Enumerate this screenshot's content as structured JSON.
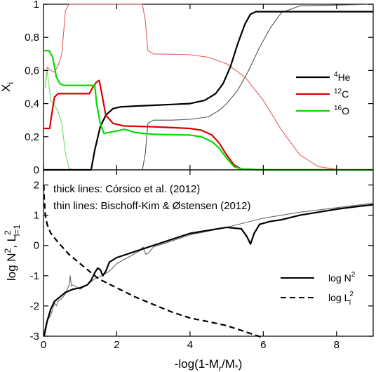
{
  "chart_data": [
    {
      "type": "line",
      "panel": "top",
      "ylabel_main": "X",
      "ylabel_sub": "i",
      "xlim": [
        0,
        9
      ],
      "ylim": [
        0,
        1
      ],
      "yticks": [
        "0",
        "0,2",
        "0,4",
        "0,6",
        "0,8",
        "1"
      ],
      "ytick_values": [
        0,
        0.2,
        0.4,
        0.6,
        0.8,
        1
      ],
      "grid": false,
      "legend_position": "right",
      "series": [
        {
          "name": "He",
          "name_sup": "4",
          "key": "he_thick",
          "style": "thick",
          "color": "#000000",
          "x": [
            0,
            1.3,
            1.4,
            1.55,
            1.7,
            1.9,
            2.1,
            2.5,
            3.0,
            3.5,
            4.0,
            4.4,
            4.7,
            4.9,
            5.1,
            5.3,
            5.5,
            5.65,
            5.8,
            6.5,
            9.0
          ],
          "y": [
            0,
            0,
            0.12,
            0.26,
            0.33,
            0.37,
            0.38,
            0.385,
            0.39,
            0.395,
            0.4,
            0.42,
            0.46,
            0.52,
            0.62,
            0.76,
            0.88,
            0.94,
            0.955,
            0.955,
            0.955
          ]
        },
        {
          "name": "C",
          "name_sup": "12",
          "key": "c_thick",
          "style": "thick",
          "color": "#dd0000",
          "x": [
            0,
            0.17,
            0.2,
            0.3,
            0.4,
            0.5,
            1.25,
            1.35,
            1.45,
            1.52,
            1.6,
            1.7,
            1.9,
            2.2,
            3.0,
            4.0,
            4.3,
            4.6,
            4.8,
            5.0,
            5.2,
            5.4,
            6.0,
            9.0
          ],
          "y": [
            0.25,
            0.25,
            0.3,
            0.44,
            0.46,
            0.46,
            0.46,
            0.5,
            0.53,
            0.54,
            0.45,
            0.33,
            0.28,
            0.265,
            0.26,
            0.25,
            0.24,
            0.21,
            0.16,
            0.09,
            0.03,
            0.005,
            0,
            0
          ]
        },
        {
          "name": "O",
          "name_sup": "16",
          "key": "o_thick",
          "style": "thick",
          "color": "#00dd00",
          "x": [
            0,
            0.15,
            0.25,
            0.35,
            0.45,
            0.55,
            1.4,
            1.45,
            1.55,
            1.65,
            1.9,
            2.1,
            2.2,
            2.3,
            2.5,
            3.0,
            4.0,
            4.3,
            4.6,
            4.8,
            5.0,
            5.2,
            5.4,
            6.0,
            9.0
          ],
          "y": [
            0.72,
            0.72,
            0.68,
            0.56,
            0.52,
            0.51,
            0.51,
            0.4,
            0.28,
            0.22,
            0.23,
            0.24,
            0.245,
            0.24,
            0.225,
            0.215,
            0.21,
            0.2,
            0.17,
            0.13,
            0.07,
            0.02,
            0.005,
            0,
            0
          ]
        },
        {
          "name": "",
          "key": "he_thin",
          "style": "thin",
          "color": "#555555",
          "x": [
            0,
            2.7,
            2.78,
            2.85,
            3.0,
            3.5,
            4.0,
            4.5,
            4.8,
            5.0,
            5.3,
            5.6,
            5.9,
            6.2,
            6.5,
            7.0,
            9.0
          ],
          "y": [
            0,
            0,
            0.1,
            0.28,
            0.3,
            0.3,
            0.305,
            0.32,
            0.36,
            0.4,
            0.48,
            0.6,
            0.74,
            0.86,
            0.95,
            0.99,
            1.0
          ]
        },
        {
          "name": "",
          "key": "c_thin",
          "style": "thin",
          "color": "#e06060",
          "x": [
            0,
            0.05,
            0.1,
            0.2,
            0.3,
            0.4,
            0.5,
            0.6,
            0.7,
            2.7,
            2.78,
            2.85,
            3.0,
            4.0,
            4.5,
            5.0,
            5.5,
            6.0,
            6.5,
            7.0,
            7.5,
            8.0,
            9.0
          ],
          "y": [
            0.5,
            0.5,
            0.62,
            0.6,
            0.59,
            0.63,
            0.7,
            0.96,
            1.0,
            1.0,
            0.9,
            0.72,
            0.7,
            0.695,
            0.68,
            0.64,
            0.56,
            0.42,
            0.24,
            0.09,
            0.02,
            0.003,
            0
          ]
        },
        {
          "name": "",
          "key": "o_thin",
          "style": "thin",
          "color": "#70dd70",
          "x": [
            0,
            0.05,
            0.1,
            0.2,
            0.3,
            0.4,
            0.5,
            0.6,
            0.7,
            0.8,
            9.0
          ],
          "y": [
            0.5,
            0.5,
            0.6,
            0.42,
            0.39,
            0.35,
            0.28,
            0.1,
            0.01,
            0,
            0
          ]
        }
      ]
    },
    {
      "type": "line",
      "panel": "bottom",
      "xlabel": "-log(1-M",
      "xlabel_sub": "r",
      "xlabel_rest": "/M",
      "xlabel_end": "*",
      "xlabel_close": ")",
      "ylabel_parts": [
        "log N",
        "2",
        ", L",
        "2",
        "l=1"
      ],
      "xlim": [
        0,
        9
      ],
      "ylim": [
        -3,
        2.5
      ],
      "xticks": [
        "0",
        "2",
        "4",
        "6",
        "8"
      ],
      "xtick_values": [
        0,
        2,
        4,
        6,
        8
      ],
      "yticks": [
        "-3",
        "-2",
        "-1",
        "0",
        "1",
        "2"
      ],
      "ytick_values": [
        -3,
        -2,
        -1,
        0,
        1,
        2
      ],
      "grid": false,
      "legend_position": "lower-right",
      "annotations": [
        "thick lines: Córsico et al. (2012)",
        "thin lines: Bischoff-Kim & Østensen (2012)"
      ],
      "series": [
        {
          "name": "log N",
          "name_sup": "2",
          "key": "n2_thick",
          "style": "solid-thick",
          "color": "#000000",
          "x": [
            0.02,
            0.05,
            0.1,
            0.15,
            0.2,
            0.3,
            0.4,
            0.5,
            0.6,
            0.8,
            1.0,
            1.2,
            1.3,
            1.4,
            1.48,
            1.55,
            1.62,
            1.7,
            1.8,
            2.0,
            2.5,
            3.0,
            3.5,
            4.0,
            4.5,
            5.0,
            5.4,
            5.55,
            5.65,
            5.75,
            5.9,
            6.2,
            6.5,
            7.0,
            7.5,
            8.0,
            8.5,
            9.0
          ],
          "y": [
            -3.0,
            -2.8,
            -2.5,
            -2.3,
            -2.1,
            -1.85,
            -1.75,
            -1.65,
            -1.55,
            -1.45,
            -1.4,
            -1.3,
            -1.15,
            -0.9,
            -0.75,
            -0.8,
            -1.0,
            -0.85,
            -0.55,
            -0.4,
            -0.2,
            0,
            0.2,
            0.4,
            0.5,
            0.6,
            0.55,
            0.3,
            0.05,
            0.4,
            0.7,
            0.8,
            0.85,
            1.0,
            1.1,
            1.2,
            1.28,
            1.35
          ]
        },
        {
          "name": "log L",
          "name_sup": "2",
          "name_sub": "l",
          "key": "l2_thick",
          "style": "dashed-thick",
          "color": "#000000",
          "x": [
            0.01,
            0.02,
            0.05,
            0.1,
            0.2,
            0.4,
            0.7,
            1.0,
            1.5,
            2.0,
            2.5,
            3.0,
            3.5,
            4.0,
            4.5,
            5.0,
            5.5,
            6.0
          ],
          "y": [
            2.0,
            1.6,
            1.0,
            0.7,
            0.4,
            0.1,
            -0.3,
            -0.6,
            -1.1,
            -1.4,
            -1.7,
            -1.95,
            -2.2,
            -2.4,
            -2.52,
            -2.65,
            -2.85,
            -3.05
          ]
        },
        {
          "name": "",
          "key": "n2_thin",
          "style": "solid-thin",
          "color": "#666666",
          "x": [
            0.0,
            0.05,
            0.1,
            0.2,
            0.3,
            0.35,
            0.4,
            0.5,
            0.6,
            0.7,
            0.73,
            0.76,
            0.8,
            1.0,
            1.2,
            1.4,
            1.6,
            1.8,
            2.0,
            2.3,
            2.6,
            2.72,
            2.8,
            2.9,
            3.0,
            3.5,
            4.0,
            5.0,
            6.0,
            7.0,
            8.0,
            9.0
          ],
          "y": [
            -3.0,
            -2.7,
            -2.5,
            -2.3,
            -1.9,
            -2.0,
            -1.85,
            -1.75,
            -1.6,
            -1.3,
            -1.0,
            -1.35,
            -1.3,
            -1.45,
            -1.3,
            -1.1,
            -1.0,
            -0.85,
            -0.6,
            -0.4,
            -0.2,
            -0.05,
            -0.3,
            -0.2,
            -0.05,
            0.15,
            0.35,
            0.6,
            0.9,
            1.1,
            1.25,
            1.4
          ]
        }
      ]
    }
  ]
}
